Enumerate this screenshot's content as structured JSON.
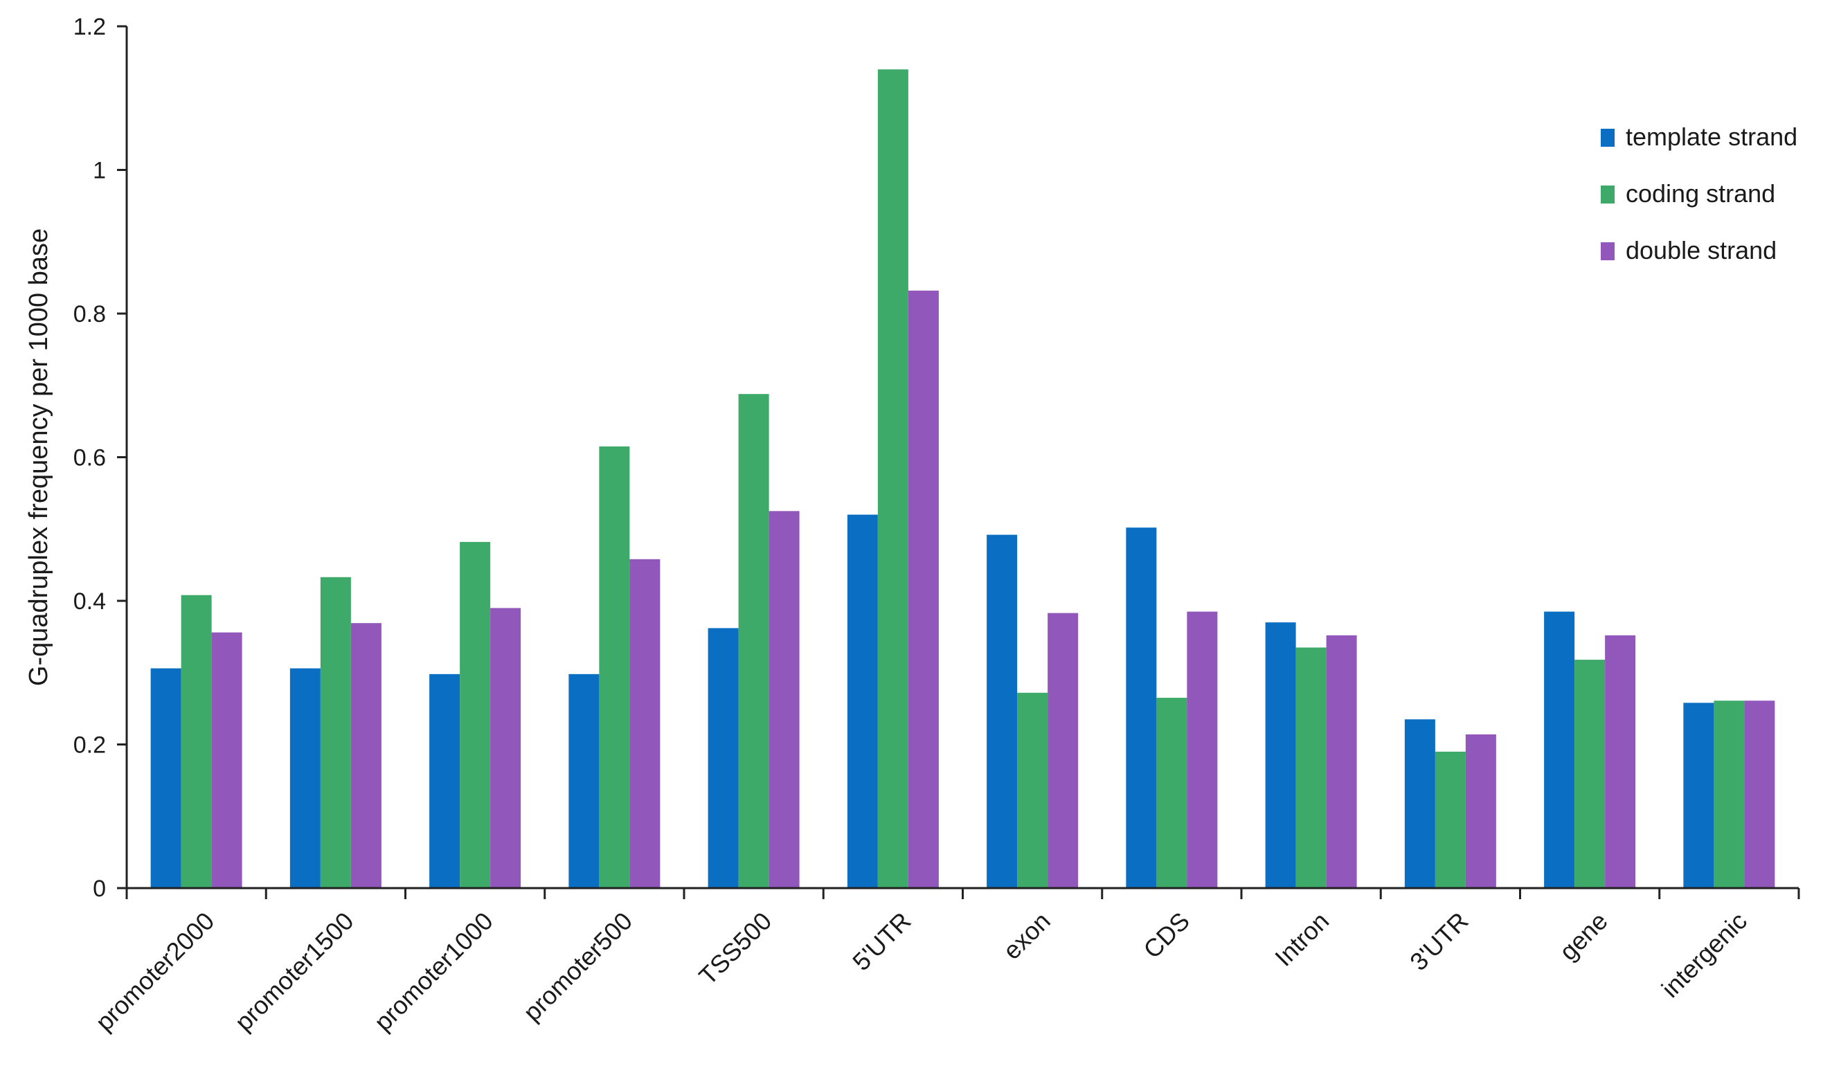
{
  "chart_data": {
    "type": "bar",
    "title": "",
    "xlabel": "",
    "ylabel": "G-quadruplex frequency per 1000 base",
    "ylim": [
      0,
      1.2
    ],
    "yticks": [
      0,
      0.2,
      0.4,
      0.6,
      0.8,
      1,
      1.2
    ],
    "ytick_labels": [
      "0",
      "0.2",
      "0.4",
      "0.6",
      "0.8",
      "1",
      "1.2"
    ],
    "grid": false,
    "legend_position": "top-right",
    "categories": [
      "promoter2000",
      "promoter1500",
      "promoter1000",
      "promoter500",
      "TSS500",
      "5'UTR",
      "exon",
      "CDS",
      "Intron",
      "3'UTR",
      "gene",
      "intergenic"
    ],
    "series": [
      {
        "name": "template strand",
        "color": "#0a6fc2",
        "values": [
          0.306,
          0.306,
          0.298,
          0.298,
          0.362,
          0.52,
          0.492,
          0.502,
          0.37,
          0.235,
          0.385,
          0.258
        ]
      },
      {
        "name": "coding strand",
        "color": "#3daa6a",
        "values": [
          0.408,
          0.433,
          0.482,
          0.615,
          0.688,
          1.14,
          0.272,
          0.265,
          0.335,
          0.19,
          0.318,
          0.261
        ]
      },
      {
        "name": "double strand",
        "color": "#9157bb",
        "values": [
          0.356,
          0.369,
          0.39,
          0.458,
          0.525,
          0.832,
          0.383,
          0.385,
          0.352,
          0.214,
          0.352,
          0.261
        ]
      }
    ]
  }
}
